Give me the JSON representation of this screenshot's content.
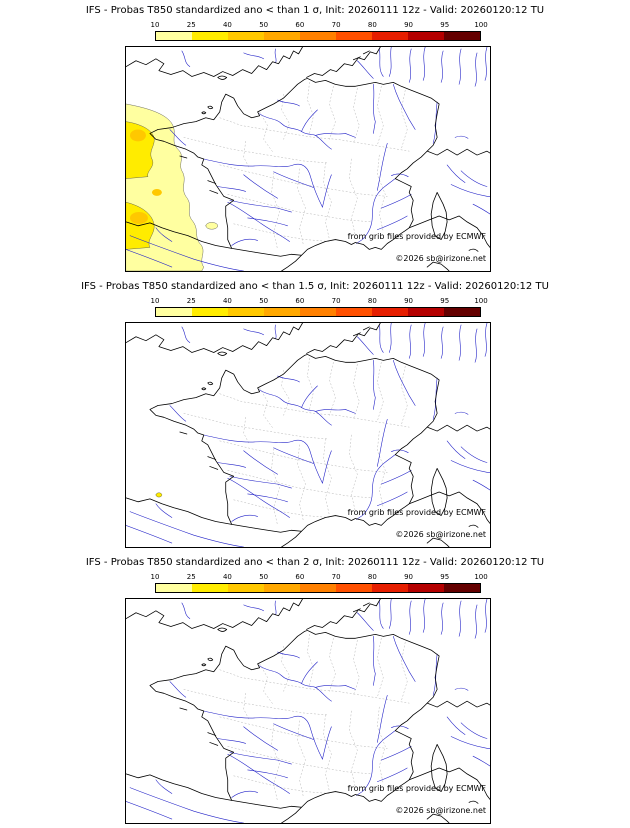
{
  "colorbar": {
    "tick_labels": [
      "10",
      "25",
      "40",
      "50",
      "60",
      "70",
      "80",
      "90",
      "95",
      "100"
    ],
    "segment_colors": [
      "#ffffa0",
      "#ffec00",
      "#ffc800",
      "#ffa800",
      "#ff8000",
      "#ff5000",
      "#e61e00",
      "#b40000",
      "#640000"
    ]
  },
  "map_colors": {
    "coastline": "#000000",
    "rivers": "#2424c8",
    "department_borders": "#b4b4b4",
    "anomaly_light": "#ffffa0",
    "anomaly_mid": "#ffec00",
    "anomaly_strong": "#ffc800",
    "frame": "#000000"
  },
  "panels": [
    {
      "title": "IFS - Probas T850  standardized ano < than 1 σ, Init: 20260111 12z - Valid: 20260120:12 TU",
      "threshold_sigma": "1",
      "credit_provider": "from grib files provided by ECMWF",
      "credit_copyright": "©2026 sb@irizone.net",
      "anomaly_overlay": "atlantic-yellow-blob"
    },
    {
      "title": "IFS - Probas T850  standardized ano < than 1.5 σ, Init: 20260111 12z - Valid: 20260120:12 TU",
      "threshold_sigma": "1.5",
      "credit_provider": "from grib files provided by ECMWF",
      "credit_copyright": "©2026 sb@irizone.net",
      "anomaly_overlay": "tiny-speck"
    },
    {
      "title": "IFS - Probas T850  standardized ano < than 2 σ, Init: 20260111 12z - Valid: 20260120:12 TU",
      "threshold_sigma": "2",
      "credit_provider": "from grib files provided by ECMWF",
      "credit_copyright": "©2026 sb@irizone.net",
      "anomaly_overlay": "none"
    }
  ]
}
